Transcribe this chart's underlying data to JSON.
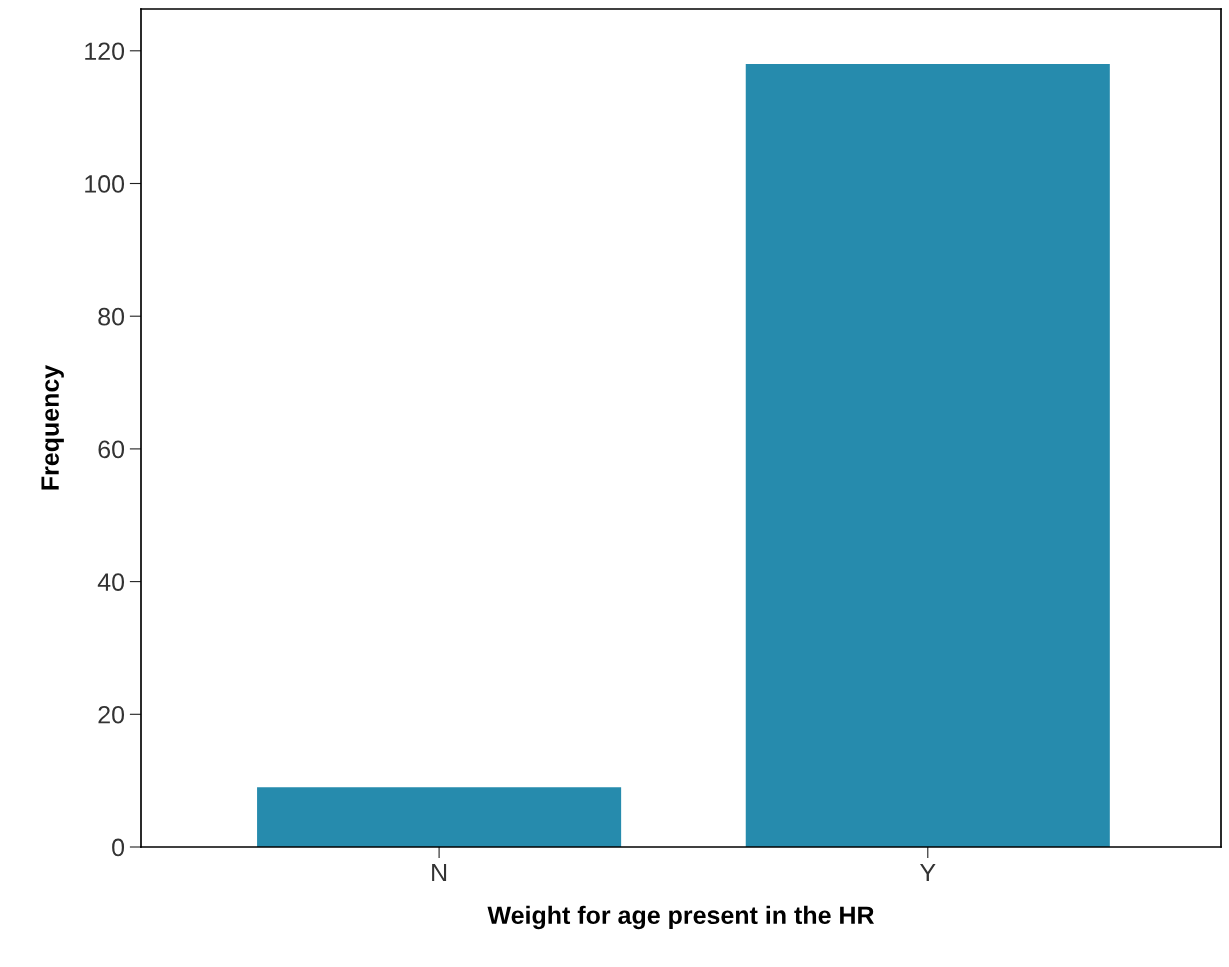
{
  "chart_data": {
    "type": "bar",
    "xlabel": "Weight for age present in the HR",
    "ylabel": "Frequency",
    "categories": [
      "N",
      "Y"
    ],
    "values": [
      9,
      118
    ],
    "color": "#268bad",
    "ylim": [
      0,
      126.3
    ],
    "yticks": [
      0,
      20,
      40,
      60,
      80,
      100,
      120
    ],
    "grid": false
  }
}
